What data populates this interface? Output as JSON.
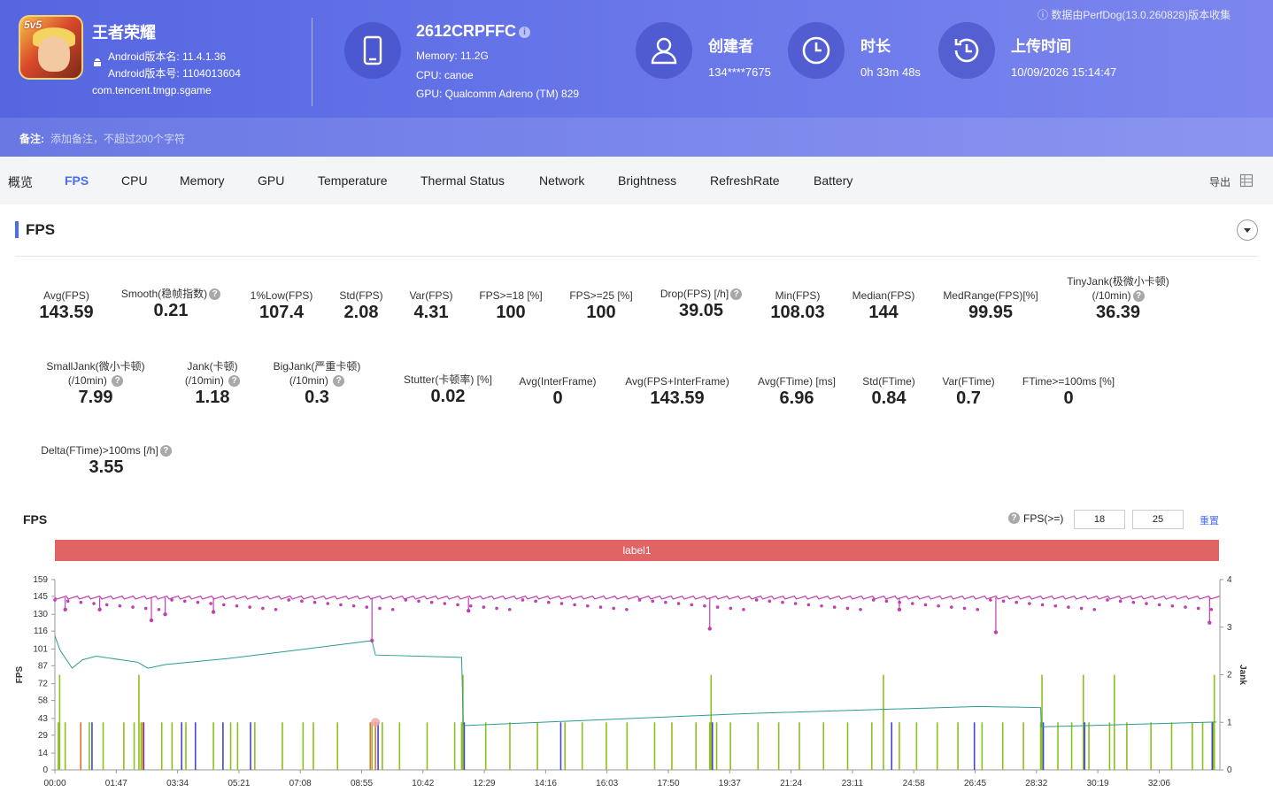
{
  "header": {
    "app_name": "王者荣耀",
    "app_icon_badge": "5v5",
    "version_name": "Android版本名: 11.4.1.36",
    "version_code": "Android版本号: 1104013604",
    "package": "com.tencent.tmgp.sgame",
    "device_name": "2612CRPFFC",
    "memory": "Memory: 11.2G",
    "cpu": "CPU: canoe",
    "gpu": "GPU: Qualcomm Adreno (TM) 829",
    "creator_title": "创建者",
    "creator_value": "134****7675",
    "duration_title": "时长",
    "duration_value": "0h 33m 48s",
    "upload_title": "上传时间",
    "upload_value": "10/09/2026 15:14:47",
    "collected_by": "数据由PerfDog(13.0.260828)版本收集",
    "notes_label": "备注:",
    "notes_placeholder": "添加备注，不超过200个字符",
    "colors": {
      "gradient_start": "#5566e0",
      "gradient_end": "#7c86ee"
    }
  },
  "tabs": [
    "概览",
    "FPS",
    "CPU",
    "Memory",
    "GPU",
    "Temperature",
    "Thermal Status",
    "Network",
    "Brightness",
    "RefreshRate",
    "Battery"
  ],
  "active_tab": "FPS",
  "export_label": "导出",
  "section_title": "FPS",
  "stats_row1": [
    {
      "label": "Avg(FPS)",
      "value": "143.59"
    },
    {
      "label": "Smooth(稳帧指数)",
      "value": "0.21"
    },
    {
      "label": "1%Low(FPS)",
      "value": "107.4"
    },
    {
      "label": "Std(FPS)",
      "value": "2.08"
    },
    {
      "label": "Var(FPS)",
      "value": "4.31"
    },
    {
      "label": "FPS>=18 [%]",
      "value": "100"
    },
    {
      "label": "FPS>=25 [%]",
      "value": "100"
    },
    {
      "label": "Drop(FPS) [/h]",
      "value": "39.05"
    },
    {
      "label": "Min(FPS)",
      "value": "108.03"
    },
    {
      "label": "Median(FPS)",
      "value": "144"
    },
    {
      "label": "MedRange(FPS)[%]",
      "value": "99.95"
    },
    {
      "label": "TinyJank(极微小卡顿)",
      "label2": "(/10min)",
      "value": "36.39"
    }
  ],
  "stats_row2": [
    {
      "label": "SmallJank(微小卡顿)",
      "label2": "(/10min)",
      "value": "7.99"
    },
    {
      "label": "Jank(卡顿)",
      "label2": "(/10min)",
      "value": "1.18"
    },
    {
      "label": "BigJank(严重卡顿)",
      "label2": "(/10min)",
      "value": "0.3"
    },
    {
      "label": "Stutter(卡顿率) [%]",
      "value": "0.02"
    },
    {
      "label": "Avg(InterFrame)",
      "value": "0"
    },
    {
      "label": "Avg(FPS+InterFrame)",
      "value": "143.59"
    },
    {
      "label": "Avg(FTime) [ms]",
      "value": "6.96"
    },
    {
      "label": "Std(FTime)",
      "value": "0.84"
    },
    {
      "label": "Var(FTime)",
      "value": "0.7"
    },
    {
      "label": "FTime>=100ms [%]",
      "value": "0"
    }
  ],
  "stats_row3": [
    {
      "label": "Delta(FTime)>100ms [/h]",
      "value": "3.55"
    }
  ],
  "chart_title": "FPS",
  "threshold_label": "FPS(>=)",
  "threshold_values": [
    "18",
    "25"
  ],
  "reset_label": "重置",
  "band_label": "label1",
  "chart_data": {
    "type": "line",
    "title": "FPS",
    "ylabel": "FPS",
    "y2label": "Jank",
    "yticks": [
      "0",
      "14",
      "29",
      "43",
      "58",
      "72",
      "87",
      "101",
      "116",
      "130",
      "145",
      "159"
    ],
    "ylim": [
      0,
      159
    ],
    "y2ticks": [
      "0",
      "1",
      "2",
      "3",
      "4"
    ],
    "y2lim": [
      0,
      4
    ],
    "xticks": [
      "00:00",
      "01:47",
      "03:34",
      "05:21",
      "07:08",
      "08:55",
      "10:42",
      "12:29",
      "14:16",
      "16:03",
      "17:50",
      "19:37",
      "21:24",
      "23:11",
      "24:58",
      "26:45",
      "28:32",
      "30:19",
      "32:06"
    ],
    "fps_level": 144,
    "fps_dips": [
      [
        0.3,
        134
      ],
      [
        1.3,
        134
      ],
      [
        2.8,
        125
      ],
      [
        3.2,
        130
      ],
      [
        4.6,
        132
      ],
      [
        9.2,
        108
      ],
      [
        12.0,
        133
      ],
      [
        19.0,
        118
      ],
      [
        24.5,
        134
      ],
      [
        27.3,
        115
      ],
      [
        33.5,
        123
      ]
    ],
    "series_colors": {
      "fps": "#c040b0",
      "secondary": "#2a9d8f",
      "jank_small": "#8ac11a",
      "jank_big": "#4444cc",
      "jank_severe": "#e07030"
    },
    "jank_small_positions": [
      0.1,
      0.3,
      1.0,
      1.4,
      2.0,
      2.3,
      2.5,
      3.1,
      3.4,
      3.8,
      4.6,
      5.1,
      5.3,
      5.8,
      6.6,
      7.2,
      7.5,
      8.2,
      9.2,
      9.5,
      10.0,
      10.8,
      11.6,
      11.8,
      12.5,
      13.2,
      14.0,
      14.8,
      15.3,
      16.0,
      16.6,
      17.4,
      17.9,
      18.6,
      19.0,
      19.2,
      19.6,
      20.4,
      21.0,
      21.6,
      22.3,
      23.0,
      23.7,
      24.5,
      25.0,
      25.6,
      26.2,
      26.9,
      27.5,
      28.1,
      28.6,
      29.1,
      29.5,
      30.0,
      30.6,
      31.1,
      31.8,
      32.4,
      33.0,
      33.3,
      33.6
    ],
    "jank_tall_positions": [
      0.1,
      2.4,
      11.8,
      19.0,
      24.0,
      28.6,
      29.8,
      30.7,
      33.6
    ],
    "jank_big_positions": [
      1.0,
      2.5,
      3.6,
      4.0,
      4.8,
      5.6,
      9.3,
      11.8,
      14.6,
      19.0,
      24.2,
      26.6,
      28.6,
      29.8,
      33.5
    ],
    "secondary_line": [
      [
        0.0,
        112
      ],
      [
        0.15,
        100
      ],
      [
        0.5,
        85
      ],
      [
        0.8,
        92
      ],
      [
        1.2,
        95
      ],
      [
        2.4,
        90
      ],
      [
        2.7,
        85
      ],
      [
        3.2,
        88
      ],
      [
        5.0,
        93
      ],
      [
        7.0,
        100
      ],
      [
        9.2,
        108
      ],
      [
        9.3,
        96
      ],
      [
        11.8,
        94
      ],
      [
        11.85,
        37
      ],
      [
        20.0,
        47
      ],
      [
        26.8,
        53
      ],
      [
        28.6,
        52
      ],
      [
        28.62,
        36
      ],
      [
        33.7,
        40
      ]
    ]
  }
}
